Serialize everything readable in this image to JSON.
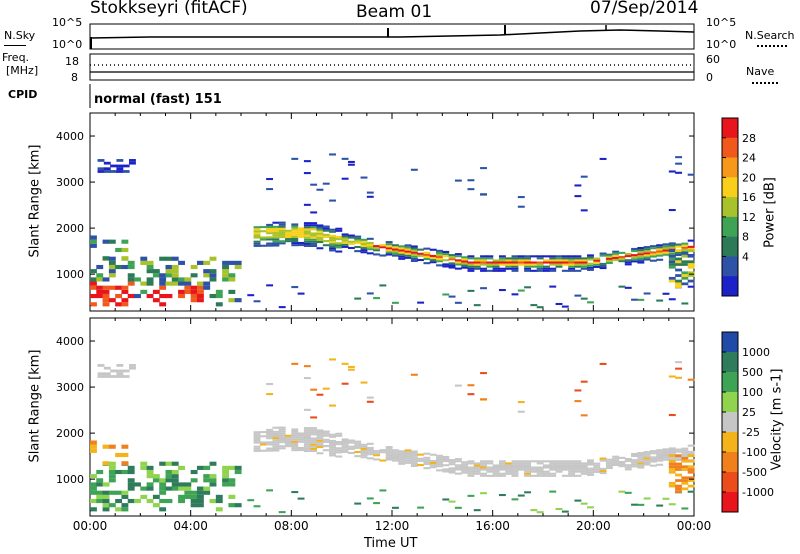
{
  "header": {
    "station": "Stokkseyri (fitACF)",
    "beam": "Beam 01",
    "date": "07/Sep/2014"
  },
  "noise_panel": {
    "left_label": "N.Sky",
    "left_ticks": [
      "10^5",
      "10^0"
    ],
    "right_ticks": [
      "10^5",
      "10^0"
    ],
    "right_label": "N.Search"
  },
  "freq_panel": {
    "left_label_1": "Freq.",
    "left_label_2": "[MHz]",
    "left_ticks": [
      "18",
      "8"
    ],
    "right_ticks": [
      "60",
      "0"
    ],
    "right_label": "Nave"
  },
  "cpid_panel": {
    "label": "CPID",
    "text": "normal (fast) 151"
  },
  "chart_data": [
    {
      "type": "heatmap",
      "ylabel": "Slant Range [km]",
      "yticks": [
        "4000",
        "3000",
        "2000",
        "1000"
      ],
      "ylim": [
        200,
        4500
      ],
      "colorbar": {
        "label": "Power [dB]",
        "ticks": [
          "28",
          "24",
          "20",
          "16",
          "12",
          "8",
          "4"
        ],
        "colors": [
          "#e8151d",
          "#f0581c",
          "#f7981b",
          "#f8cf1a",
          "#a8c22b",
          "#3fa356",
          "#2d7a58",
          "#2e52a5",
          "#1b22c8"
        ]
      }
    },
    {
      "type": "heatmap",
      "ylabel": "Slant Range [km]",
      "yticks": [
        "4000",
        "3000",
        "2000",
        "1000"
      ],
      "ylim": [
        200,
        4500
      ],
      "colorbar": {
        "label": "Velocity [m s-1]",
        "ticks": [
          "1000",
          "500",
          "100",
          "25",
          "-25",
          "-100",
          "-500",
          "-1000"
        ],
        "colors": [
          "#1f4aa8",
          "#2e7c5c",
          "#3fa356",
          "#8fd34f",
          "#c6c6c6",
          "#f5b31b",
          "#f0801c",
          "#ec4b1c",
          "#e8151d"
        ]
      }
    }
  ],
  "x_axis": {
    "ticks": [
      "00:00",
      "04:00",
      "08:00",
      "12:00",
      "16:00",
      "20:00",
      "00:00"
    ],
    "label": "Time UT"
  }
}
